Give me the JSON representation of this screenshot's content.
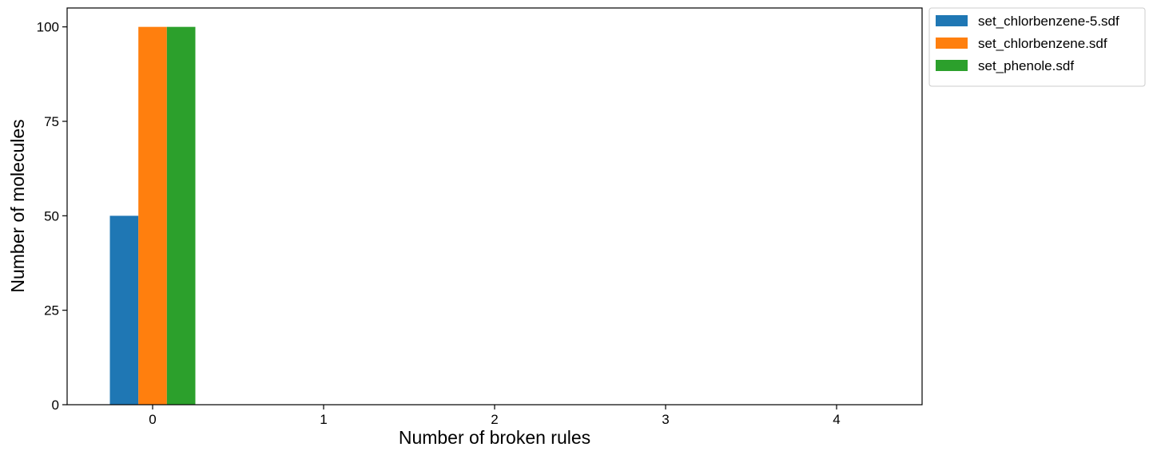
{
  "chart_data": {
    "type": "bar",
    "categories": [
      "0",
      "1",
      "2",
      "3",
      "4"
    ],
    "series": [
      {
        "name": "set_chlorbenzene-5.sdf",
        "color": "#1f77b4",
        "values": [
          50,
          0,
          0,
          0,
          0
        ]
      },
      {
        "name": "set_chlorbenzene.sdf",
        "color": "#ff7f0e",
        "values": [
          100,
          0,
          0,
          0,
          0
        ]
      },
      {
        "name": "set_phenole.sdf",
        "color": "#2ca02c",
        "values": [
          100,
          0,
          0,
          0,
          0
        ]
      }
    ],
    "xlabel": "Number of broken rules",
    "ylabel": "Number of molecules",
    "ylim": [
      0,
      105
    ],
    "xlim": [
      -0.5,
      4.5
    ],
    "yticks": [
      0,
      25,
      50,
      75,
      100
    ],
    "grid": false,
    "legend_position": "outside-top-right"
  }
}
